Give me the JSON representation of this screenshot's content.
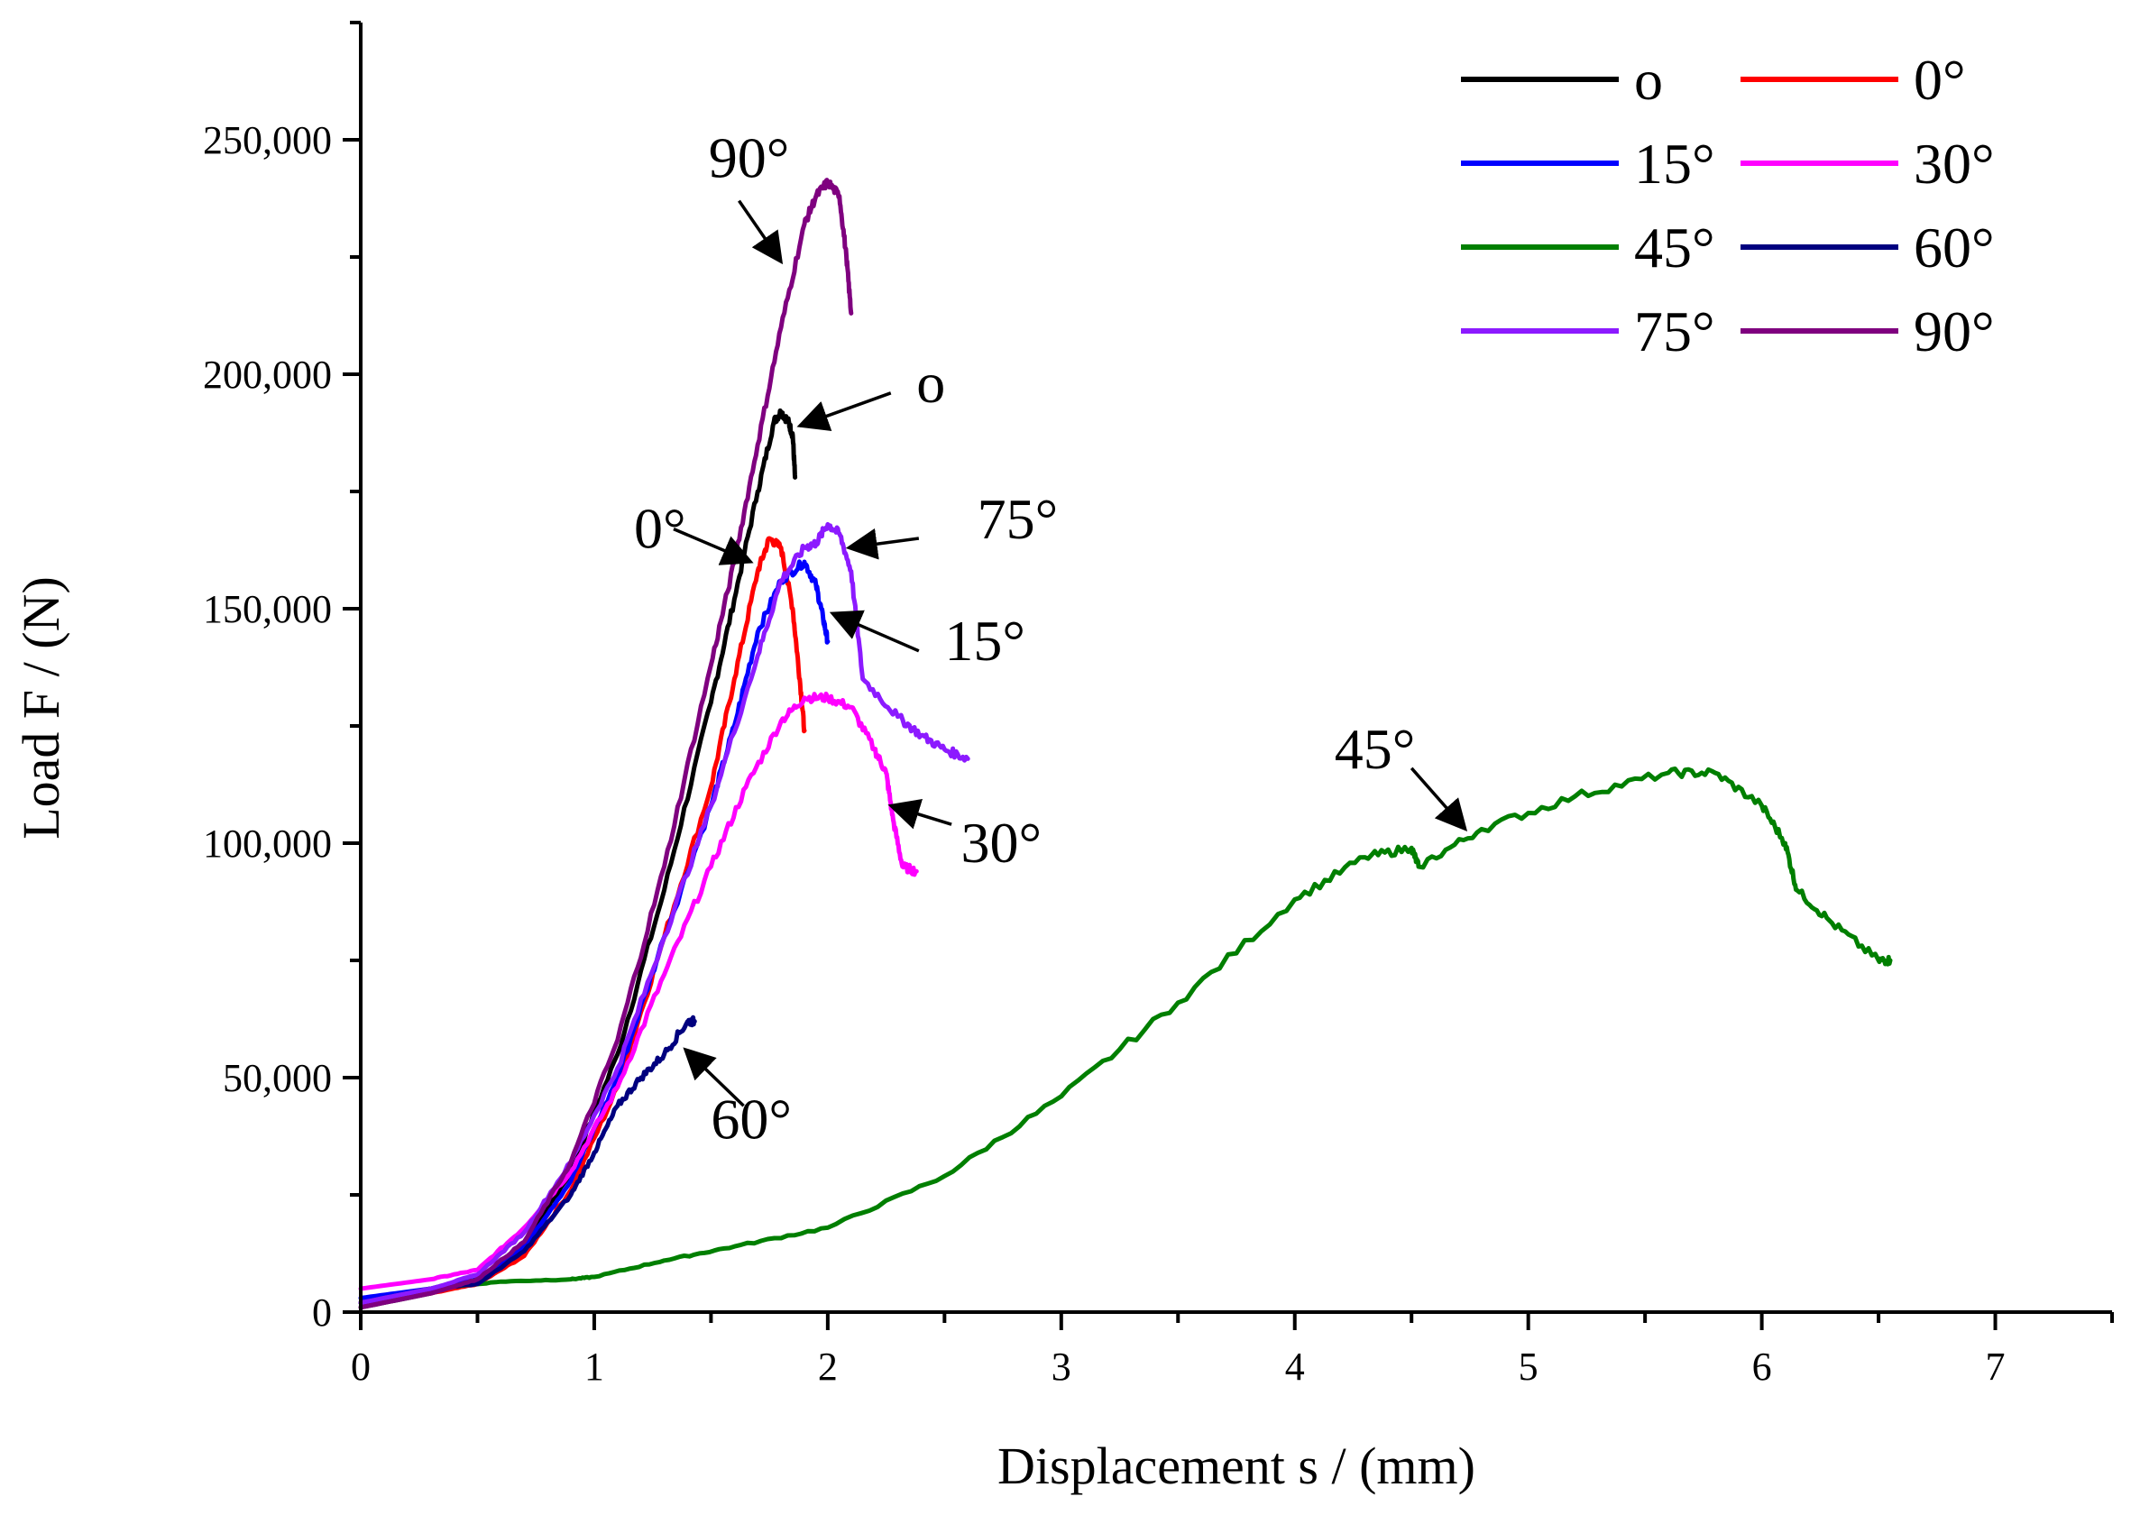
{
  "chart_data": {
    "type": "line",
    "title": "",
    "xlabel": "Displacement s / (mm)",
    "ylabel": "Load F / (N)",
    "xlim": [
      0,
      7.5
    ],
    "ylim": [
      0,
      275000
    ],
    "xticks": [
      0,
      1,
      2,
      3,
      4,
      5,
      6,
      7
    ],
    "xtick_labels": [
      "0",
      "1",
      "2",
      "3",
      "4",
      "5",
      "6",
      "7"
    ],
    "yticks": [
      0,
      50000,
      100000,
      150000,
      200000,
      250000
    ],
    "ytick_labels": [
      "0",
      "50,000",
      "100,000",
      "150,000",
      "200,000",
      "250,000"
    ],
    "grid": false,
    "legend_position": "top-right",
    "series": [
      {
        "name": "o",
        "color": "#000000",
        "points": [
          [
            0,
            1000
          ],
          [
            0.3,
            4000
          ],
          [
            0.5,
            7000
          ],
          [
            0.7,
            14000
          ],
          [
            0.9,
            30000
          ],
          [
            1.1,
            55000
          ],
          [
            1.3,
            90000
          ],
          [
            1.5,
            130000
          ],
          [
            1.6,
            152000
          ],
          [
            1.7,
            175000
          ],
          [
            1.77,
            190000
          ],
          [
            1.8,
            192000
          ],
          [
            1.83,
            190000
          ],
          [
            1.85,
            187000
          ],
          [
            1.86,
            178000
          ]
        ]
      },
      {
        "name": "0°",
        "color": "#ff0000",
        "points": [
          [
            0,
            2000
          ],
          [
            0.3,
            4000
          ],
          [
            0.5,
            6000
          ],
          [
            0.7,
            12000
          ],
          [
            0.9,
            26000
          ],
          [
            1.1,
            48000
          ],
          [
            1.3,
            80000
          ],
          [
            1.5,
            112000
          ],
          [
            1.6,
            135000
          ],
          [
            1.7,
            158000
          ],
          [
            1.75,
            165000
          ],
          [
            1.8,
            163000
          ],
          [
            1.85,
            150000
          ],
          [
            1.88,
            135000
          ],
          [
            1.9,
            124000
          ]
        ]
      },
      {
        "name": "15°",
        "color": "#0000ff",
        "points": [
          [
            0,
            3000
          ],
          [
            0.3,
            5000
          ],
          [
            0.5,
            7000
          ],
          [
            0.7,
            14000
          ],
          [
            0.9,
            28000
          ],
          [
            1.1,
            50000
          ],
          [
            1.3,
            80000
          ],
          [
            1.5,
            108000
          ],
          [
            1.6,
            125000
          ],
          [
            1.7,
            145000
          ],
          [
            1.8,
            156000
          ],
          [
            1.9,
            160000
          ],
          [
            1.95,
            155000
          ],
          [
            1.98,
            148000
          ],
          [
            2.0,
            143000
          ]
        ]
      },
      {
        "name": "30°",
        "color": "#ff00ff",
        "points": [
          [
            0,
            5000
          ],
          [
            0.3,
            7000
          ],
          [
            0.5,
            9000
          ],
          [
            0.7,
            18000
          ],
          [
            0.9,
            30000
          ],
          [
            1.1,
            48000
          ],
          [
            1.3,
            72000
          ],
          [
            1.5,
            95000
          ],
          [
            1.65,
            112000
          ],
          [
            1.8,
            126000
          ],
          [
            1.9,
            131000
          ],
          [
            2.0,
            131000
          ],
          [
            2.1,
            129000
          ],
          [
            2.2,
            120000
          ],
          [
            2.25,
            115000
          ],
          [
            2.28,
            105000
          ],
          [
            2.32,
            95000
          ],
          [
            2.38,
            94000
          ]
        ]
      },
      {
        "name": "45°",
        "color": "#007f00",
        "points": [
          [
            0,
            2000
          ],
          [
            0.3,
            5000
          ],
          [
            0.6,
            6500
          ],
          [
            0.9,
            7000
          ],
          [
            1.0,
            7500
          ],
          [
            1.3,
            11000
          ],
          [
            1.6,
            14000
          ],
          [
            2.0,
            18000
          ],
          [
            2.5,
            29000
          ],
          [
            3.0,
            46000
          ],
          [
            3.5,
            66000
          ],
          [
            4.0,
            88000
          ],
          [
            4.3,
            97000
          ],
          [
            4.5,
            99000
          ],
          [
            4.53,
            95000
          ],
          [
            4.8,
            103000
          ],
          [
            5.2,
            110000
          ],
          [
            5.6,
            115000
          ],
          [
            5.8,
            115000
          ],
          [
            6.0,
            108000
          ],
          [
            6.1,
            100000
          ],
          [
            6.15,
            90000
          ],
          [
            6.3,
            83000
          ],
          [
            6.5,
            75000
          ],
          [
            6.55,
            75000
          ]
        ]
      },
      {
        "name": "60°",
        "color": "#00007f",
        "points": [
          [
            0,
            2000
          ],
          [
            0.3,
            5000
          ],
          [
            0.5,
            6000
          ],
          [
            0.7,
            13000
          ],
          [
            0.9,
            25000
          ],
          [
            1.0,
            34000
          ],
          [
            1.1,
            44000
          ],
          [
            1.2,
            50000
          ],
          [
            1.3,
            55000
          ],
          [
            1.4,
            62000
          ],
          [
            1.43,
            62000
          ]
        ]
      },
      {
        "name": "75°",
        "color": "#8c1aff",
        "points": [
          [
            0,
            2000
          ],
          [
            0.3,
            5000
          ],
          [
            0.5,
            8000
          ],
          [
            0.7,
            17000
          ],
          [
            0.9,
            32000
          ],
          [
            1.1,
            52000
          ],
          [
            1.3,
            80000
          ],
          [
            1.5,
            108000
          ],
          [
            1.7,
            140000
          ],
          [
            1.8,
            156000
          ],
          [
            1.9,
            163000
          ],
          [
            1.95,
            164000
          ],
          [
            2.0,
            168000
          ],
          [
            2.05,
            166000
          ],
          [
            2.1,
            158000
          ],
          [
            2.15,
            135000
          ],
          [
            2.3,
            127000
          ],
          [
            2.4,
            123000
          ],
          [
            2.5,
            120000
          ],
          [
            2.6,
            118000
          ]
        ]
      },
      {
        "name": "90°",
        "color": "#7f007f",
        "points": [
          [
            0,
            1000
          ],
          [
            0.3,
            4000
          ],
          [
            0.5,
            7000
          ],
          [
            0.7,
            15000
          ],
          [
            0.9,
            32000
          ],
          [
            1.1,
            58000
          ],
          [
            1.3,
            95000
          ],
          [
            1.5,
            138000
          ],
          [
            1.6,
            160000
          ],
          [
            1.7,
            185000
          ],
          [
            1.8,
            210000
          ],
          [
            1.9,
            232000
          ],
          [
            1.95,
            238000
          ],
          [
            2.0,
            241000
          ],
          [
            2.05,
            238000
          ],
          [
            2.08,
            225000
          ],
          [
            2.1,
            213000
          ]
        ]
      }
    ],
    "annotations": [
      {
        "label": "90°",
        "text_x": 1.49,
        "text_y": 242000,
        "arrow_from": [
          1.62,
          237000
        ],
        "arrow_to": [
          1.8,
          224000
        ]
      },
      {
        "label": "o",
        "text_x": 2.38,
        "text_y": 194000,
        "arrow_from": [
          2.27,
          196000
        ],
        "arrow_to": [
          1.88,
          189000
        ]
      },
      {
        "label": "0°",
        "text_x": 1.17,
        "text_y": 163000,
        "arrow_from": [
          1.34,
          167000
        ],
        "arrow_to": [
          1.67,
          160000
        ]
      },
      {
        "label": "75°",
        "text_x": 2.64,
        "text_y": 165000,
        "arrow_from": [
          2.39,
          165000
        ],
        "arrow_to": [
          2.09,
          163000
        ]
      },
      {
        "label": "15°",
        "text_x": 2.5,
        "text_y": 139000,
        "arrow_from": [
          2.39,
          141000
        ],
        "arrow_to": [
          2.02,
          149000
        ]
      },
      {
        "label": "30°",
        "text_x": 2.57,
        "text_y": 96000,
        "arrow_from": [
          2.53,
          104000
        ],
        "arrow_to": [
          2.27,
          108000
        ]
      },
      {
        "label": "45°",
        "text_x": 4.17,
        "text_y": 116000,
        "arrow_from": [
          4.5,
          116000
        ],
        "arrow_to": [
          4.73,
          103000
        ]
      },
      {
        "label": "60°",
        "text_x": 1.5,
        "text_y": 37000,
        "arrow_from": [
          1.64,
          44000
        ],
        "arrow_to": [
          1.39,
          56000
        ]
      }
    ]
  }
}
